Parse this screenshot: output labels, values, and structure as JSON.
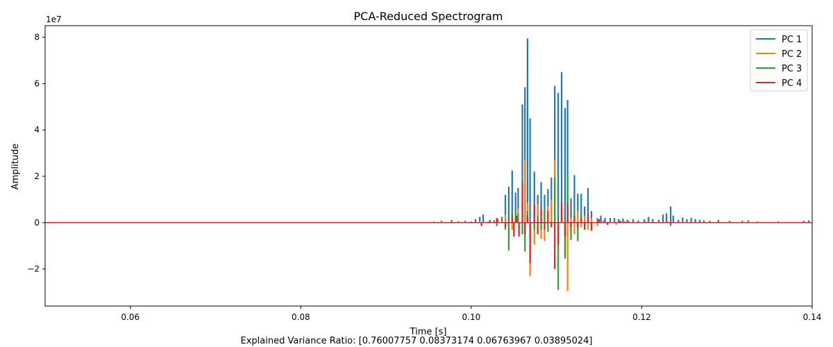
{
  "chart_data": {
    "type": "line",
    "title": "PCA-Reduced Spectrogram",
    "xlabel": "Time [s]",
    "ylabel": "Amplitude",
    "y_scale_label": "1e7",
    "xlim": [
      0.05,
      0.14
    ],
    "ylim": [
      -3.6,
      8.5
    ],
    "y_unit_multiplier": 10000000,
    "x_ticks": [
      0.06,
      0.08,
      0.1,
      0.12,
      0.14
    ],
    "x_tick_labels": [
      "0.06",
      "0.08",
      "0.10",
      "0.12",
      "0.14"
    ],
    "y_ticks": [
      -2,
      0,
      2,
      4,
      6,
      8
    ],
    "y_tick_labels": [
      "−2",
      "0",
      "2",
      "4",
      "6",
      "8"
    ],
    "grid": false,
    "legend_position": "top-right",
    "footer": "Explained Variance Ratio: [0.76007757 0.08373174 0.06763967 0.03895024]",
    "series": [
      {
        "name": "PC 1",
        "color": "#1f77b4",
        "points": [
          [
            0.0956,
            0.05
          ],
          [
            0.0965,
            0.08
          ],
          [
            0.0977,
            0.12
          ],
          [
            0.0985,
            0.06
          ],
          [
            0.0993,
            0.08
          ],
          [
            0.1005,
            0.15
          ],
          [
            0.101,
            0.25
          ],
          [
            0.1014,
            0.35
          ],
          [
            0.1022,
            0.12
          ],
          [
            0.1027,
            0.1
          ],
          [
            0.1031,
            0.15
          ],
          [
            0.1036,
            0.25
          ],
          [
            0.104,
            1.2
          ],
          [
            0.1044,
            1.55
          ],
          [
            0.1048,
            2.25
          ],
          [
            0.1052,
            1.3
          ],
          [
            0.1055,
            1.5
          ],
          [
            0.106,
            5.1
          ],
          [
            0.1063,
            5.85
          ],
          [
            0.1066,
            7.95
          ],
          [
            0.1069,
            4.5
          ],
          [
            0.1074,
            2.2
          ],
          [
            0.1078,
            1.2
          ],
          [
            0.1082,
            1.75
          ],
          [
            0.1086,
            1.2
          ],
          [
            0.109,
            1.45
          ],
          [
            0.1094,
            1.95
          ],
          [
            0.1098,
            5.9
          ],
          [
            0.1102,
            5.6
          ],
          [
            0.1106,
            6.5
          ],
          [
            0.111,
            4.95
          ],
          [
            0.1113,
            5.3
          ],
          [
            0.1117,
            1.05
          ],
          [
            0.1121,
            2.05
          ],
          [
            0.1125,
            1.25
          ],
          [
            0.1129,
            1.25
          ],
          [
            0.1133,
            0.7
          ],
          [
            0.1137,
            1.5
          ],
          [
            0.1141,
            0.5
          ],
          [
            0.1148,
            0.2
          ],
          [
            0.1152,
            0.3
          ],
          [
            0.1157,
            0.2
          ],
          [
            0.1163,
            0.2
          ],
          [
            0.1168,
            0.2
          ],
          [
            0.1173,
            0.15
          ],
          [
            0.1178,
            0.18
          ],
          [
            0.1183,
            0.12
          ],
          [
            0.119,
            0.15
          ],
          [
            0.1196,
            0.1
          ],
          [
            0.1203,
            0.15
          ],
          [
            0.1208,
            0.25
          ],
          [
            0.1213,
            0.15
          ],
          [
            0.122,
            0.12
          ],
          [
            0.1225,
            0.35
          ],
          [
            0.1229,
            0.4
          ],
          [
            0.1234,
            0.7
          ],
          [
            0.1237,
            0.3
          ],
          [
            0.1243,
            0.12
          ],
          [
            0.1248,
            0.22
          ],
          [
            0.1253,
            0.15
          ],
          [
            0.1258,
            0.2
          ],
          [
            0.1263,
            0.15
          ],
          [
            0.1268,
            0.12
          ],
          [
            0.1273,
            0.1
          ],
          [
            0.128,
            0.08
          ],
          [
            0.129,
            0.12
          ],
          [
            0.1303,
            0.08
          ],
          [
            0.1318,
            0.08
          ],
          [
            0.1325,
            0.1
          ],
          [
            0.1336,
            0.05
          ],
          [
            0.136,
            0.05
          ],
          [
            0.139,
            0.08
          ],
          [
            0.1396,
            0.1
          ]
        ]
      },
      {
        "name": "PC 2",
        "color": "#ff7f0e",
        "points": [
          [
            0.101,
            0.05
          ],
          [
            0.103,
            0.2
          ],
          [
            0.104,
            0.35
          ],
          [
            0.1048,
            -0.3
          ],
          [
            0.1055,
            0.6
          ],
          [
            0.106,
            1.55
          ],
          [
            0.1063,
            2.7
          ],
          [
            0.1066,
            0.85
          ],
          [
            0.1069,
            -2.3
          ],
          [
            0.1074,
            -0.95
          ],
          [
            0.1078,
            0.8
          ],
          [
            0.1082,
            -0.7
          ],
          [
            0.1086,
            -0.8
          ],
          [
            0.109,
            0.7
          ],
          [
            0.1094,
            1.0
          ],
          [
            0.1098,
            2.7
          ],
          [
            0.1102,
            -0.4
          ],
          [
            0.1106,
            0.9
          ],
          [
            0.111,
            -1.3
          ],
          [
            0.1113,
            -2.95
          ],
          [
            0.1117,
            0.2
          ],
          [
            0.1121,
            -0.5
          ],
          [
            0.1125,
            0.5
          ],
          [
            0.1129,
            -0.2
          ],
          [
            0.1133,
            0.3
          ],
          [
            0.1137,
            -0.3
          ],
          [
            0.1141,
            0.2
          ],
          [
            0.1148,
            -0.15
          ],
          [
            0.1155,
            0.1
          ],
          [
            0.117,
            -0.1
          ],
          [
            0.1185,
            0.08
          ],
          [
            0.1205,
            0.05
          ],
          [
            0.123,
            0.08
          ]
        ]
      },
      {
        "name": "PC 3",
        "color": "#2ca02c",
        "points": [
          [
            0.102,
            0.05
          ],
          [
            0.103,
            -0.15
          ],
          [
            0.1036,
            0.2
          ],
          [
            0.104,
            -0.3
          ],
          [
            0.1044,
            -1.2
          ],
          [
            0.1048,
            0.5
          ],
          [
            0.1052,
            0.35
          ],
          [
            0.1055,
            0.4
          ],
          [
            0.106,
            -0.5
          ],
          [
            0.1063,
            -1.25
          ],
          [
            0.1066,
            0.5
          ],
          [
            0.1069,
            -0.6
          ],
          [
            0.1074,
            -0.3
          ],
          [
            0.1078,
            0.3
          ],
          [
            0.1082,
            -0.3
          ],
          [
            0.1086,
            0.6
          ],
          [
            0.109,
            -0.4
          ],
          [
            0.1094,
            -0.2
          ],
          [
            0.1098,
            1.95
          ],
          [
            0.1102,
            -2.9
          ],
          [
            0.1106,
            0.6
          ],
          [
            0.111,
            -1.55
          ],
          [
            0.1113,
            2.0
          ],
          [
            0.1117,
            -0.75
          ],
          [
            0.1121,
            0.6
          ],
          [
            0.1125,
            -0.8
          ],
          [
            0.1129,
            0.3
          ],
          [
            0.1133,
            -0.3
          ],
          [
            0.1137,
            0.2
          ],
          [
            0.1141,
            -0.2
          ],
          [
            0.115,
            0.1
          ],
          [
            0.116,
            -0.1
          ],
          [
            0.118,
            0.05
          ],
          [
            0.1234,
            -0.15
          ]
        ]
      },
      {
        "name": "PC 4",
        "color": "#d62728",
        "points": [
          [
            0.1,
            0.05
          ],
          [
            0.1012,
            -0.15
          ],
          [
            0.103,
            0.2
          ],
          [
            0.104,
            -0.2
          ],
          [
            0.1048,
            0.3
          ],
          [
            0.105,
            -0.6
          ],
          [
            0.1053,
            0.3
          ],
          [
            0.1056,
            -0.6
          ],
          [
            0.106,
            1.75
          ],
          [
            0.1063,
            -0.5
          ],
          [
            0.1066,
            0.3
          ],
          [
            0.1069,
            -1.75
          ],
          [
            0.1074,
            0.8
          ],
          [
            0.1078,
            -0.5
          ],
          [
            0.1082,
            0.6
          ],
          [
            0.1086,
            -0.3
          ],
          [
            0.109,
            0.5
          ],
          [
            0.1094,
            -0.2
          ],
          [
            0.1098,
            -2.0
          ],
          [
            0.1102,
            -0.95
          ],
          [
            0.1106,
            0.9
          ],
          [
            0.111,
            -0.6
          ],
          [
            0.1113,
            0.85
          ],
          [
            0.1117,
            -0.2
          ],
          [
            0.1121,
            0.3
          ],
          [
            0.1125,
            -0.2
          ],
          [
            0.1129,
            0.2
          ],
          [
            0.1133,
            -0.3
          ],
          [
            0.1137,
            0.4
          ],
          [
            0.1141,
            -0.35
          ],
          [
            0.115,
            0.15
          ],
          [
            0.116,
            -0.1
          ],
          [
            0.1175,
            0.08
          ]
        ]
      }
    ]
  }
}
